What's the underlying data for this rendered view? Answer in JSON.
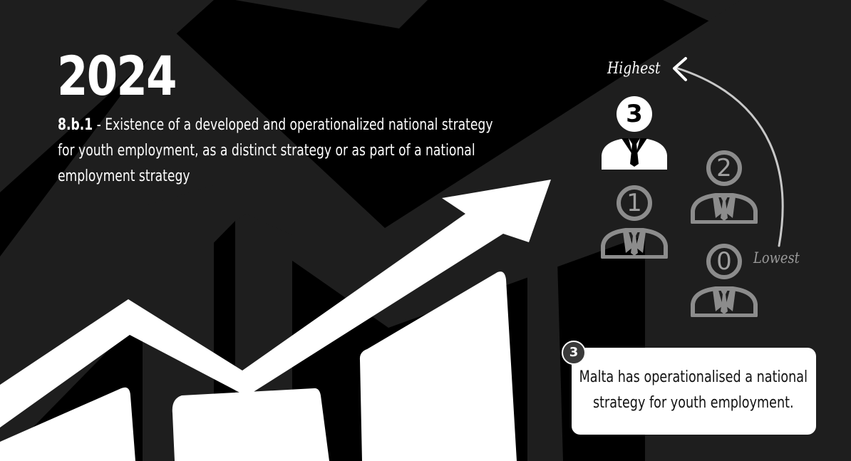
{
  "year": "2024",
  "indicator": {
    "code": "8.b.1",
    "separator": " - ",
    "text": "Existence of a developed and operationalized national strategy for youth employment, as a distinct strategy or as part of a national employment strategy"
  },
  "scale": {
    "highest_label": "Highest",
    "lowest_label": "Lowest",
    "levels": [
      {
        "value": "3"
      },
      {
        "value": "2"
      },
      {
        "value": "1"
      },
      {
        "value": "0"
      }
    ],
    "selected": 3
  },
  "result": {
    "badge": "3",
    "text": "Malta has operationalised a national strategy for youth employment."
  },
  "colors": {
    "background": "#000000",
    "decor": "#1e1e1e",
    "active": "#ffffff",
    "inactive": "#8c8c8c"
  }
}
